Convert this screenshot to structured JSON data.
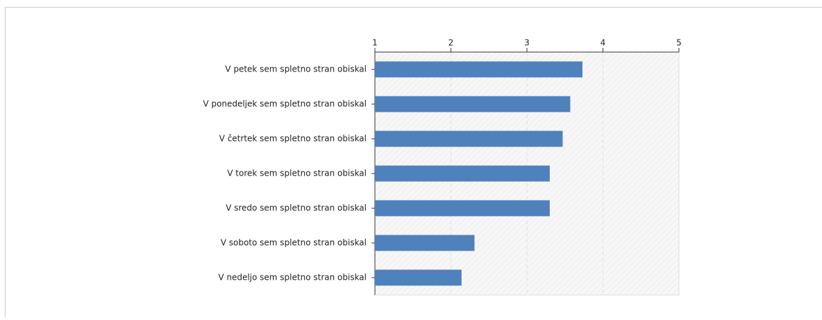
{
  "chart_data": {
    "type": "bar",
    "orientation": "horizontal",
    "categories": [
      "V petek sem spletno stran obiskal",
      "V ponedeljek sem spletno stran obiskal",
      "V četrtek sem spletno stran obiskal",
      "V torek sem spletno stran obiskal",
      "V sredo sem spletno stran obiskal",
      "V soboto sem spletno stran obiskal",
      "V nedeljo sem spletno stran obiskal"
    ],
    "values": [
      3.73,
      3.57,
      3.47,
      3.3,
      3.3,
      2.31,
      2.14
    ],
    "color": "#4f81bd",
    "xlim": [
      1,
      5
    ],
    "xticks": [
      1,
      2,
      3,
      4,
      5
    ],
    "grid": true
  }
}
